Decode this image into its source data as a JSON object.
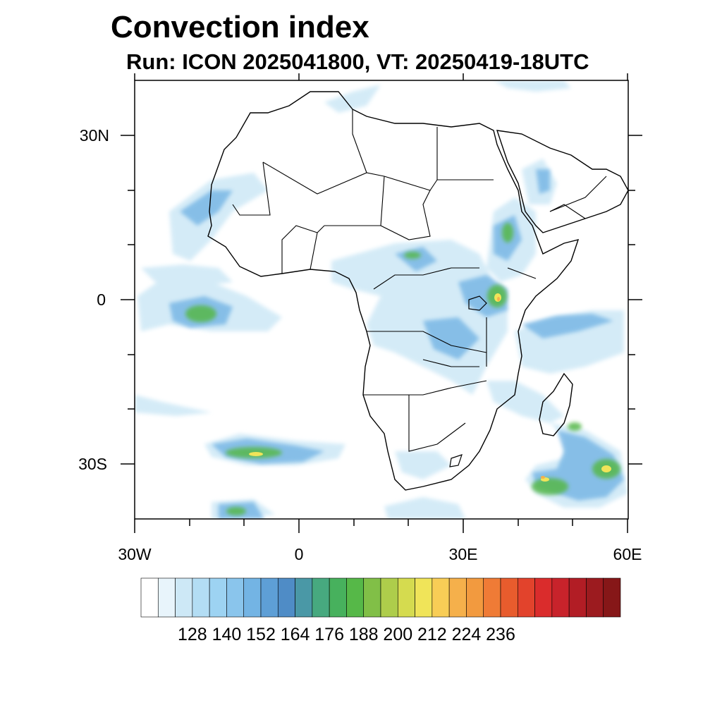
{
  "title": "Convection index",
  "subtitle": "Run: ICON 2025041800,  VT: 20250419-18UTC",
  "axes": {
    "lat_labels": [
      "30N",
      "0",
      "30S"
    ],
    "lon_labels": [
      "30W",
      "0",
      "30E",
      "60E"
    ],
    "lat_range": [
      -40,
      40
    ],
    "lon_range": [
      -30,
      60
    ]
  },
  "colorbar": {
    "tick_labels": [
      "128",
      "140",
      "152",
      "164",
      "176",
      "188",
      "200",
      "212",
      "224",
      "236"
    ],
    "colors": [
      "#ffffff",
      "#e8f4fb",
      "#cde8f6",
      "#b3ddf4",
      "#9dd3f2",
      "#8ac5ec",
      "#73b4e4",
      "#5e9fd6",
      "#4f8cc6",
      "#4a98a6",
      "#47a97f",
      "#47b15d",
      "#56b848",
      "#81bf47",
      "#aecd4b",
      "#d5db4f",
      "#f0e459",
      "#f8cd56",
      "#f5b04b",
      "#f29a3f",
      "#ef7b36",
      "#e85c2d",
      "#e2432c",
      "#da2c2c",
      "#c8232b",
      "#b21d25",
      "#9c1b1f",
      "#861718"
    ]
  },
  "chart_data": {
    "type": "heatmap",
    "title": "Convection index",
    "subtitle": "Run: ICON 2025041800,  VT: 20250419-18UTC",
    "x_ticks": [
      "30W",
      "0",
      "30E",
      "60E"
    ],
    "y_ticks": [
      "30N",
      "0",
      "30S"
    ],
    "xlim": [
      -30,
      60
    ],
    "ylim": [
      -40,
      40
    ],
    "colorbar_ticks": [
      128,
      140,
      152,
      164,
      176,
      188,
      200,
      212,
      224,
      236
    ]
  }
}
